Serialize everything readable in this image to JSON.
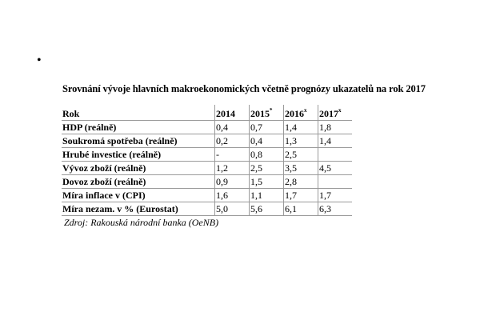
{
  "bullet": "•",
  "title": "Srovnání vývoje hlavních makroekonomických včetně prognózy ukazatelů na rok 2017",
  "table": {
    "header": {
      "label": "Rok",
      "years": [
        {
          "year": "2014",
          "mark": ""
        },
        {
          "year": "2015",
          "mark": "*"
        },
        {
          "year": "2016",
          "mark": "x"
        },
        {
          "year": "2017",
          "mark": "x"
        }
      ]
    },
    "rows": [
      {
        "label": "HDP (reálně)",
        "values": [
          "0,4",
          "0,7",
          "1,4",
          "1,8"
        ]
      },
      {
        "label": "Soukromá spotřeba (reálně)",
        "values": [
          "0,2",
          "0,4",
          "1,3",
          "1,4"
        ]
      },
      {
        "label": "Hrubé investice (reálně)",
        "values": [
          "-",
          "0,8",
          "2,5",
          ""
        ]
      },
      {
        "label": "Vývoz zboží (reálně)",
        "values": [
          "1,2",
          "2,5",
          "3,5",
          "4,5"
        ]
      },
      {
        "label": "Dovoz zboží (reálně)",
        "values": [
          "0,9",
          "1,5",
          "2,8",
          ""
        ]
      },
      {
        "label": "Míra inflace v (CPI)",
        "values": [
          "1,6",
          "1,1",
          "1,7",
          "1,7"
        ]
      },
      {
        "label": "Míra nezam. v % (Eurostat)",
        "values": [
          "5,0",
          "5,6",
          "6,1",
          "6,3"
        ]
      }
    ]
  },
  "source": "Zdroj:  Rakouská národní banka (OeNB)"
}
